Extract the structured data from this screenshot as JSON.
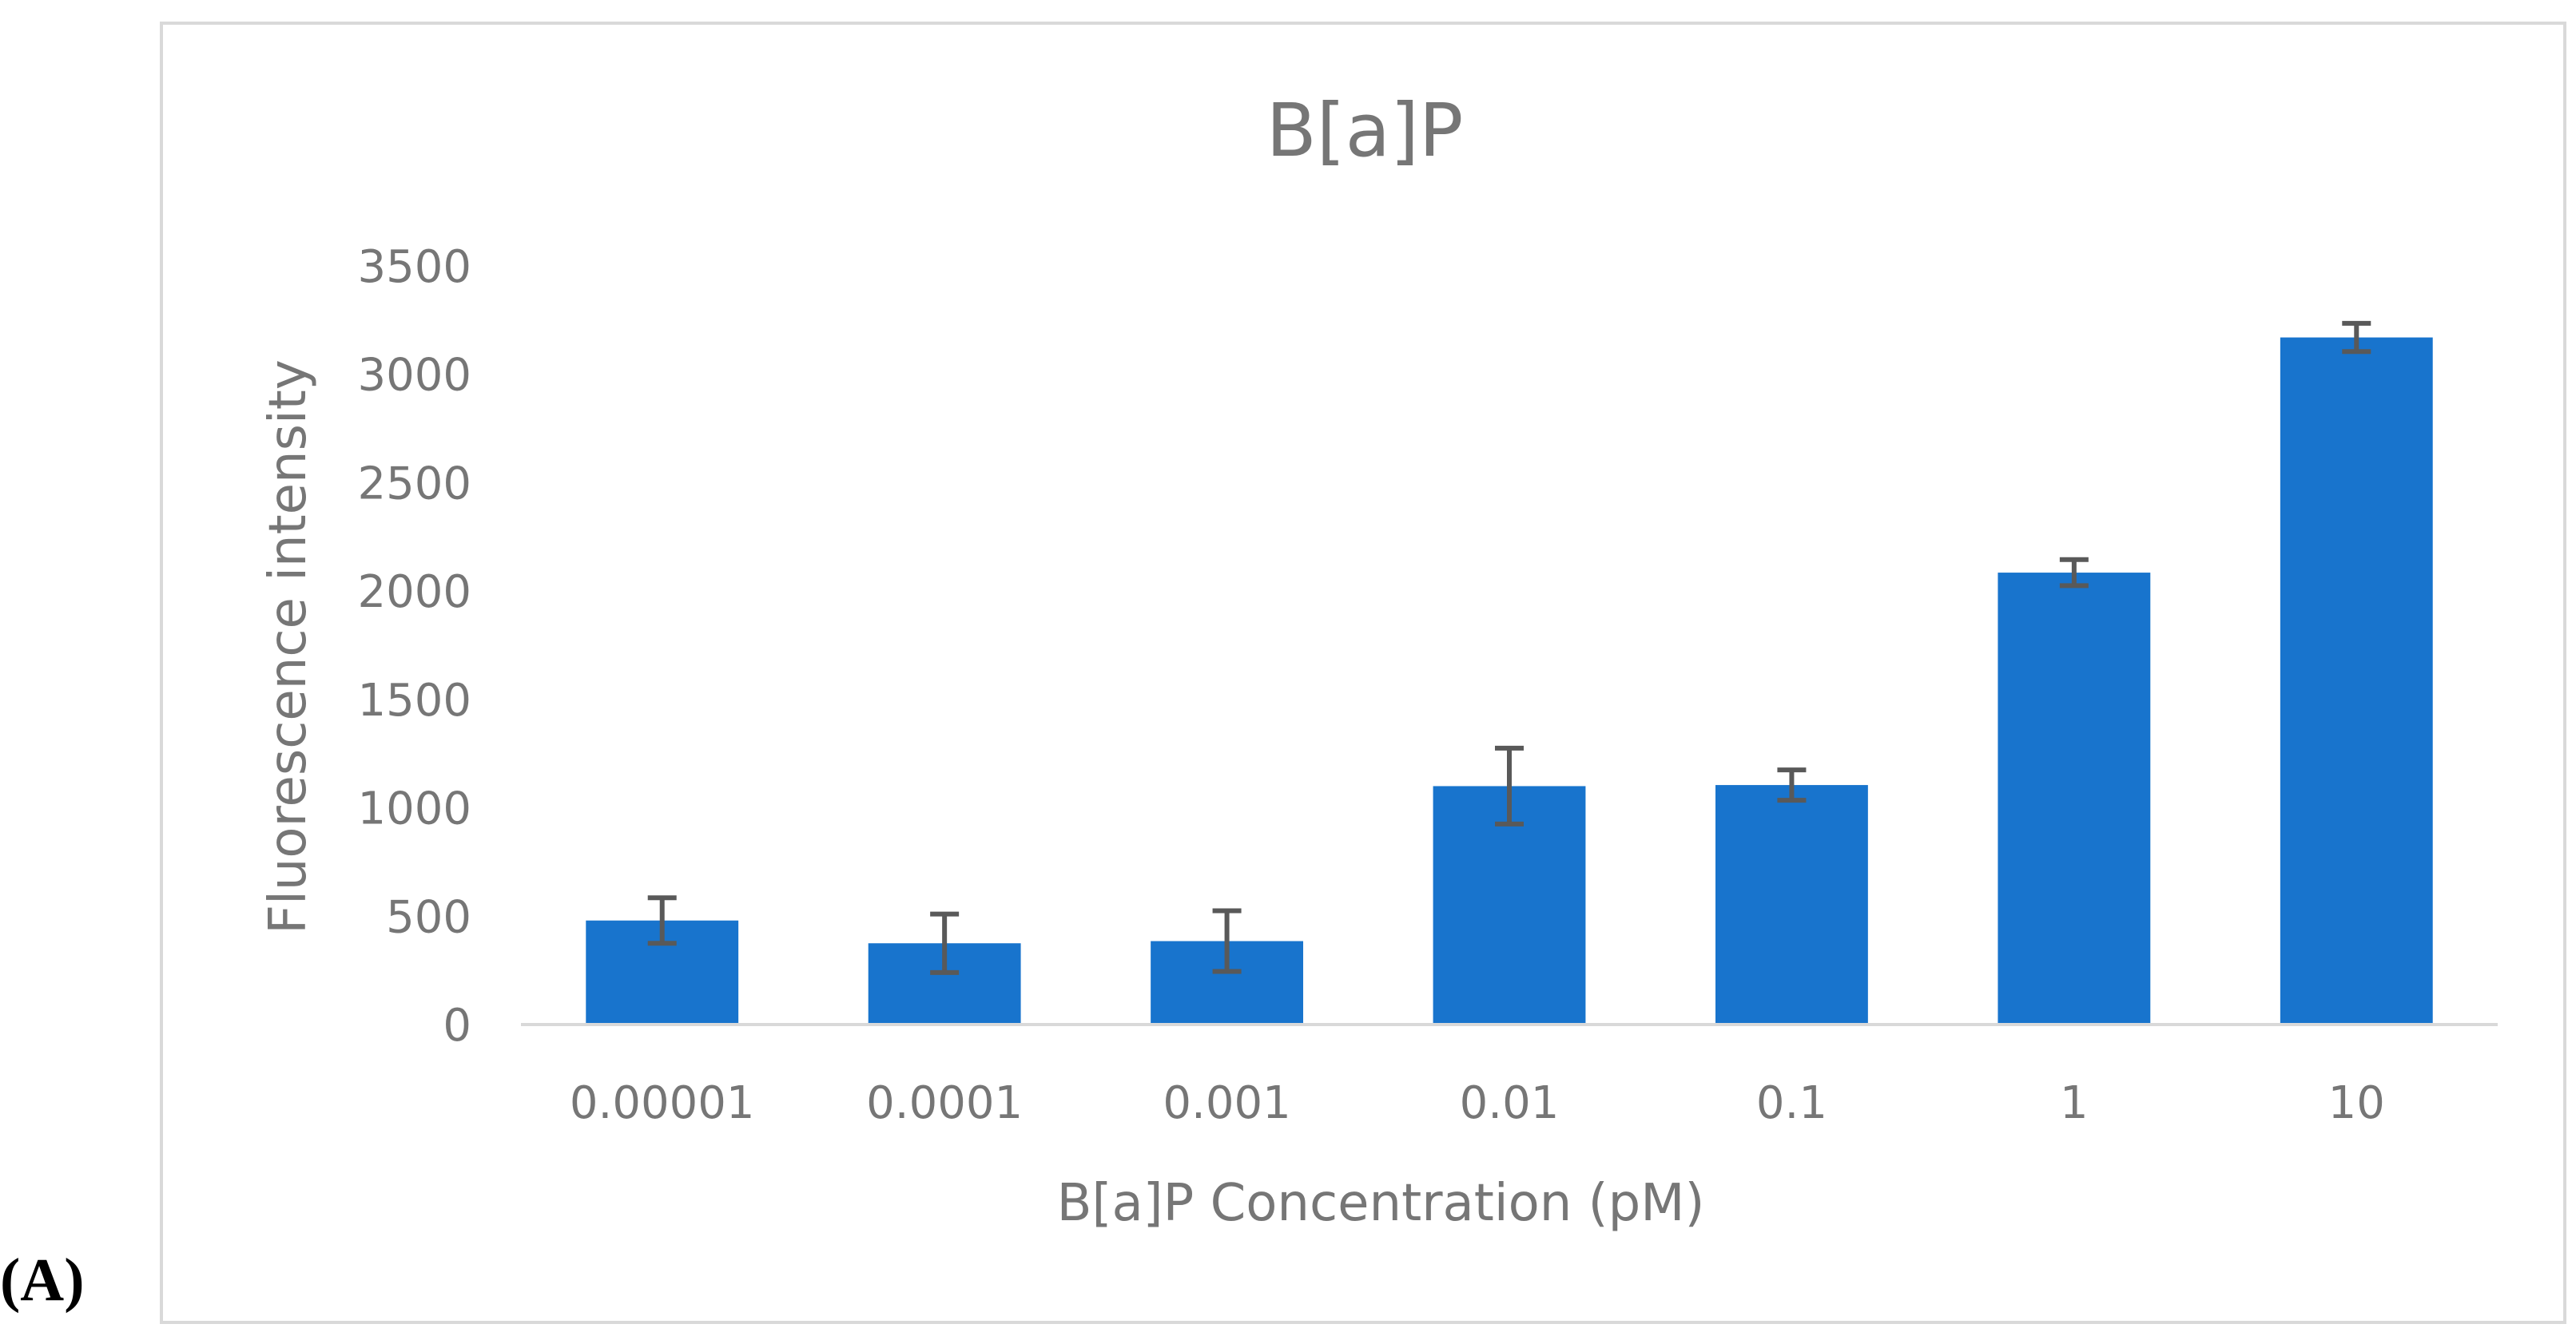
{
  "panel_label": "(A)",
  "colors": {
    "bar": "#1874CD",
    "error_bar": "#595959",
    "axis_line": "#d9d9d9",
    "text": "#767676"
  },
  "chart_data": {
    "type": "bar",
    "title": "B[a]P",
    "xlabel": "B[a]P Concentration (pM)",
    "ylabel": "Fluorescence intensity",
    "categories": [
      "0.00001",
      "0.0001",
      "0.001",
      "0.01",
      "0.1",
      "1",
      "10"
    ],
    "values": [
      480,
      375,
      385,
      1100,
      1105,
      2085,
      3170
    ],
    "errors": [
      105,
      135,
      140,
      175,
      70,
      60,
      65
    ],
    "ylim": [
      0,
      3500
    ],
    "yticks": [
      "0",
      "500",
      "1000",
      "1500",
      "2000",
      "2500",
      "3000",
      "3500"
    ],
    "grid": false,
    "legend": "none"
  }
}
